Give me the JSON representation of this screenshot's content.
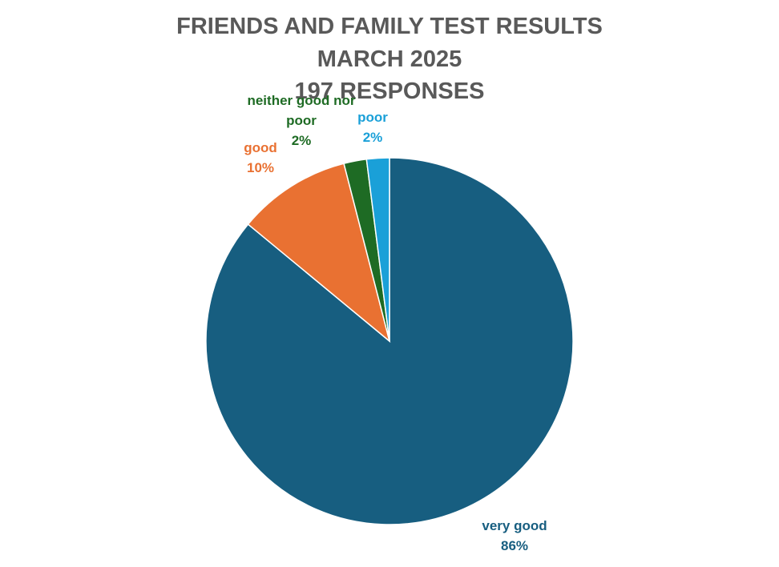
{
  "chart_data": {
    "type": "pie",
    "title": [
      "FRIENDS AND FAMILY TEST RESULTS",
      "MARCH 2025",
      "197 RESPONSES"
    ],
    "categories": [
      "very good",
      "good",
      "neither good nor poor",
      "poor"
    ],
    "values": [
      86,
      10,
      2,
      2
    ],
    "value_labels": [
      "86%",
      "10%",
      "2%",
      "2%"
    ],
    "colors": [
      "#175e80",
      "#e97132",
      "#1e6b24",
      "#1aa0d8"
    ]
  }
}
